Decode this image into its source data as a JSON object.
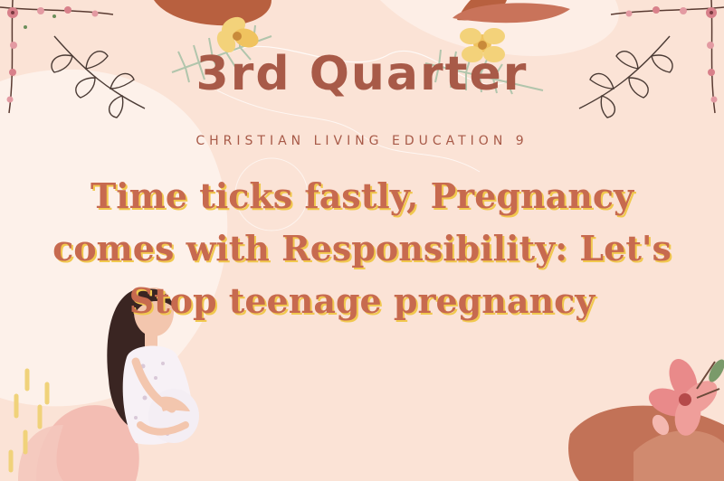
{
  "slide": {
    "quarter_title": "3rd Quarter",
    "subject": "CHRISTIAN LIVING EDUCATION 9",
    "headline": "Time ticks fastly, Pregnancy comes with Responsibility: Let's Stop teenage pregnancy"
  },
  "icons": {
    "corner_floral_left": "floral-vine-icon",
    "corner_floral_right": "floral-vine-icon",
    "leaf_left": "leaf-branch-icon",
    "leaf_right": "leaf-branch-icon",
    "flower_top": "yellow-flower-icon",
    "woman": "pregnant-woman-illustration",
    "flower_bottom_right": "pink-flower-icon"
  },
  "colors": {
    "background": "#fbe3d6",
    "title": "#a85a48",
    "headline": "#c76a4f",
    "headline_shadow": "#f1c84e",
    "accent_rust": "#b8603f"
  }
}
